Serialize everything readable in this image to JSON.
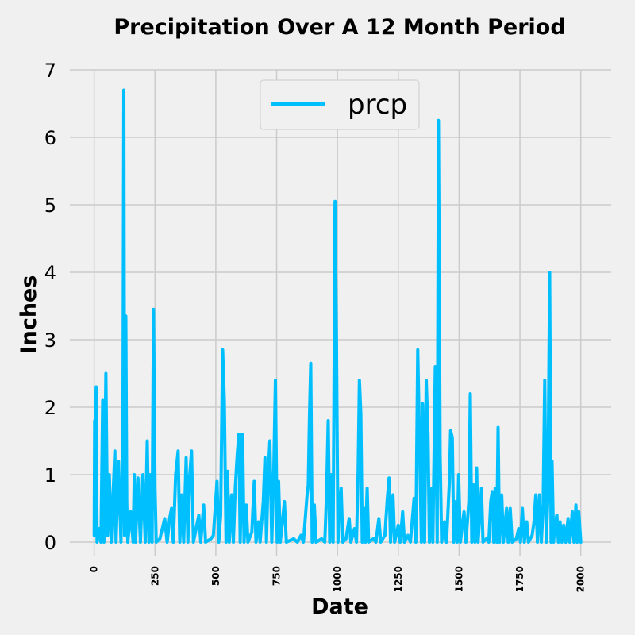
{
  "chart_data": {
    "type": "line",
    "title": "Precipitation Over A 12 Month Period",
    "xlabel": "Date",
    "ylabel": "Inches",
    "xlim": [
      -100,
      2125
    ],
    "ylim": [
      -0.2,
      7
    ],
    "x_ticks": [
      0,
      250,
      500,
      750,
      1000,
      1250,
      1500,
      1750,
      2000
    ],
    "y_ticks": [
      0,
      1,
      2,
      3,
      4,
      5,
      6,
      7
    ],
    "grid": true,
    "legend_position": "top-center",
    "series": [
      {
        "name": "prcp",
        "color": "#00bfff",
        "peaks": [
          [
            0,
            0.1
          ],
          [
            2,
            1.8
          ],
          [
            5,
            0.1
          ],
          [
            8,
            2.3
          ],
          [
            12,
            0.0
          ],
          [
            20,
            0.2
          ],
          [
            28,
            0.0
          ],
          [
            35,
            2.1
          ],
          [
            40,
            0.0
          ],
          [
            48,
            2.5
          ],
          [
            55,
            0.1
          ],
          [
            62,
            1.0
          ],
          [
            70,
            0.0
          ],
          [
            85,
            1.35
          ],
          [
            90,
            0.0
          ],
          [
            100,
            1.2
          ],
          [
            110,
            0.0
          ],
          [
            118,
            1.3
          ],
          [
            122,
            6.7
          ],
          [
            125,
            0.1
          ],
          [
            130,
            3.35
          ],
          [
            134,
            0.6
          ],
          [
            138,
            0.0
          ],
          [
            150,
            0.45
          ],
          [
            160,
            0.0
          ],
          [
            165,
            1.0
          ],
          [
            170,
            0.0
          ],
          [
            180,
            0.95
          ],
          [
            190,
            0.0
          ],
          [
            200,
            1.0
          ],
          [
            210,
            0.0
          ],
          [
            218,
            1.5
          ],
          [
            225,
            0.0
          ],
          [
            230,
            1.0
          ],
          [
            238,
            0.0
          ],
          [
            244,
            3.45
          ],
          [
            250,
            0.8
          ],
          [
            255,
            0.0
          ],
          [
            270,
            0.05
          ],
          [
            290,
            0.35
          ],
          [
            300,
            0.0
          ],
          [
            310,
            0.35
          ],
          [
            318,
            0.5
          ],
          [
            325,
            0.0
          ],
          [
            335,
            1.0
          ],
          [
            345,
            1.35
          ],
          [
            352,
            0.0
          ],
          [
            360,
            0.7
          ],
          [
            368,
            0.0
          ],
          [
            378,
            1.25
          ],
          [
            385,
            0.0
          ],
          [
            392,
            0.95
          ],
          [
            400,
            1.35
          ],
          [
            408,
            0.0
          ],
          [
            430,
            0.4
          ],
          [
            438,
            0.0
          ],
          [
            450,
            0.55
          ],
          [
            458,
            0.0
          ],
          [
            480,
            0.05
          ],
          [
            490,
            0.1
          ],
          [
            505,
            0.9
          ],
          [
            512,
            0.0
          ],
          [
            520,
            0.4
          ],
          [
            528,
            2.85
          ],
          [
            535,
            2.1
          ],
          [
            542,
            0.0
          ],
          [
            548,
            1.05
          ],
          [
            555,
            0.0
          ],
          [
            565,
            0.7
          ],
          [
            572,
            0.0
          ],
          [
            580,
            0.8
          ],
          [
            588,
            1.3
          ],
          [
            595,
            1.6
          ],
          [
            600,
            0.0
          ],
          [
            610,
            1.6
          ],
          [
            616,
            0.0
          ],
          [
            625,
            0.55
          ],
          [
            632,
            0.0
          ],
          [
            648,
            0.15
          ],
          [
            658,
            0.9
          ],
          [
            665,
            0.0
          ],
          [
            675,
            0.3
          ],
          [
            682,
            0.0
          ],
          [
            695,
            0.6
          ],
          [
            702,
            1.25
          ],
          [
            708,
            0.0
          ],
          [
            715,
            1.0
          ],
          [
            722,
            1.5
          ],
          [
            730,
            0.0
          ],
          [
            738,
            1.05
          ],
          [
            745,
            2.4
          ],
          [
            752,
            0.0
          ],
          [
            758,
            0.9
          ],
          [
            765,
            0.0
          ],
          [
            775,
            0.35
          ],
          [
            782,
            0.6
          ],
          [
            790,
            0.0
          ],
          [
            820,
            0.05
          ],
          [
            835,
            0.0
          ],
          [
            850,
            0.1
          ],
          [
            860,
            0.0
          ],
          [
            875,
            0.7
          ],
          [
            880,
            0.85
          ],
          [
            885,
            1.85
          ],
          [
            890,
            2.65
          ],
          [
            896,
            0.0
          ],
          [
            905,
            0.55
          ],
          [
            912,
            0.0
          ],
          [
            935,
            0.05
          ],
          [
            948,
            0.0
          ],
          [
            955,
            0.7
          ],
          [
            962,
            1.8
          ],
          [
            968,
            0.0
          ],
          [
            975,
            1.0
          ],
          [
            982,
            0.0
          ],
          [
            990,
            5.05
          ],
          [
            996,
            2.95
          ],
          [
            1002,
            0.0
          ],
          [
            1008,
            0.5
          ],
          [
            1015,
            0.8
          ],
          [
            1022,
            0.0
          ],
          [
            1035,
            0.05
          ],
          [
            1048,
            0.35
          ],
          [
            1055,
            0.0
          ],
          [
            1070,
            0.2
          ],
          [
            1078,
            0.0
          ],
          [
            1085,
            1.05
          ],
          [
            1090,
            2.4
          ],
          [
            1096,
            1.9
          ],
          [
            1102,
            0.0
          ],
          [
            1108,
            0.5
          ],
          [
            1115,
            0.0
          ],
          [
            1122,
            0.8
          ],
          [
            1128,
            0.0
          ],
          [
            1148,
            0.05
          ],
          [
            1158,
            0.0
          ],
          [
            1170,
            0.35
          ],
          [
            1178,
            0.0
          ],
          [
            1195,
            0.1
          ],
          [
            1205,
            0.65
          ],
          [
            1212,
            0.95
          ],
          [
            1218,
            0.0
          ],
          [
            1228,
            0.7
          ],
          [
            1235,
            0.0
          ],
          [
            1250,
            0.25
          ],
          [
            1258,
            0.0
          ],
          [
            1268,
            0.45
          ],
          [
            1275,
            0.0
          ],
          [
            1290,
            0.1
          ],
          [
            1300,
            0.0
          ],
          [
            1315,
            0.65
          ],
          [
            1322,
            0.0
          ],
          [
            1330,
            2.85
          ],
          [
            1338,
            1.3
          ],
          [
            1345,
            0.0
          ],
          [
            1350,
            2.05
          ],
          [
            1358,
            0.0
          ],
          [
            1365,
            2.4
          ],
          [
            1372,
            1.6
          ],
          [
            1378,
            0.0
          ],
          [
            1385,
            0.8
          ],
          [
            1392,
            0.0
          ],
          [
            1402,
            2.6
          ],
          [
            1410,
            0.0
          ],
          [
            1415,
            6.25
          ],
          [
            1422,
            1.3
          ],
          [
            1428,
            0.0
          ],
          [
            1440,
            0.3
          ],
          [
            1448,
            0.0
          ],
          [
            1460,
            0.9
          ],
          [
            1465,
            1.65
          ],
          [
            1472,
            1.55
          ],
          [
            1478,
            0.0
          ],
          [
            1486,
            0.6
          ],
          [
            1492,
            0.0
          ],
          [
            1498,
            1.0
          ],
          [
            1505,
            0.0
          ],
          [
            1520,
            0.45
          ],
          [
            1528,
            0.0
          ],
          [
            1540,
            0.6
          ],
          [
            1546,
            2.2
          ],
          [
            1552,
            0.0
          ],
          [
            1558,
            0.85
          ],
          [
            1565,
            0.0
          ],
          [
            1572,
            1.1
          ],
          [
            1578,
            0.0
          ],
          [
            1592,
            0.8
          ],
          [
            1598,
            0.0
          ],
          [
            1612,
            0.05
          ],
          [
            1622,
            0.0
          ],
          [
            1630,
            0.6
          ],
          [
            1636,
            0.75
          ],
          [
            1642,
            0.0
          ],
          [
            1648,
            0.8
          ],
          [
            1655,
            0.0
          ],
          [
            1660,
            1.7
          ],
          [
            1666,
            0.0
          ],
          [
            1675,
            0.7
          ],
          [
            1682,
            0.0
          ],
          [
            1695,
            0.5
          ],
          [
            1702,
            0.0
          ],
          [
            1710,
            0.5
          ],
          [
            1718,
            0.0
          ],
          [
            1735,
            0.05
          ],
          [
            1745,
            0.2
          ],
          [
            1752,
            0.0
          ],
          [
            1760,
            0.5
          ],
          [
            1768,
            0.0
          ],
          [
            1778,
            0.3
          ],
          [
            1785,
            0.0
          ],
          [
            1800,
            0.1
          ],
          [
            1808,
            0.3
          ],
          [
            1815,
            0.7
          ],
          [
            1822,
            0.0
          ],
          [
            1830,
            0.7
          ],
          [
            1838,
            0.0
          ],
          [
            1845,
            0.5
          ],
          [
            1852,
            2.4
          ],
          [
            1858,
            0.0
          ],
          [
            1865,
            0.7
          ],
          [
            1872,
            4.0
          ],
          [
            1878,
            0.0
          ],
          [
            1882,
            1.2
          ],
          [
            1888,
            0.0
          ],
          [
            1895,
            0.3
          ],
          [
            1902,
            0.4
          ],
          [
            1908,
            0.0
          ],
          [
            1915,
            0.3
          ],
          [
            1922,
            0.0
          ],
          [
            1930,
            0.25
          ],
          [
            1938,
            0.0
          ],
          [
            1948,
            0.35
          ],
          [
            1955,
            0.0
          ],
          [
            1965,
            0.45
          ],
          [
            1972,
            0.0
          ],
          [
            1980,
            0.55
          ],
          [
            1985,
            0.0
          ],
          [
            1992,
            0.45
          ],
          [
            2000,
            0.0
          ]
        ]
      }
    ]
  }
}
